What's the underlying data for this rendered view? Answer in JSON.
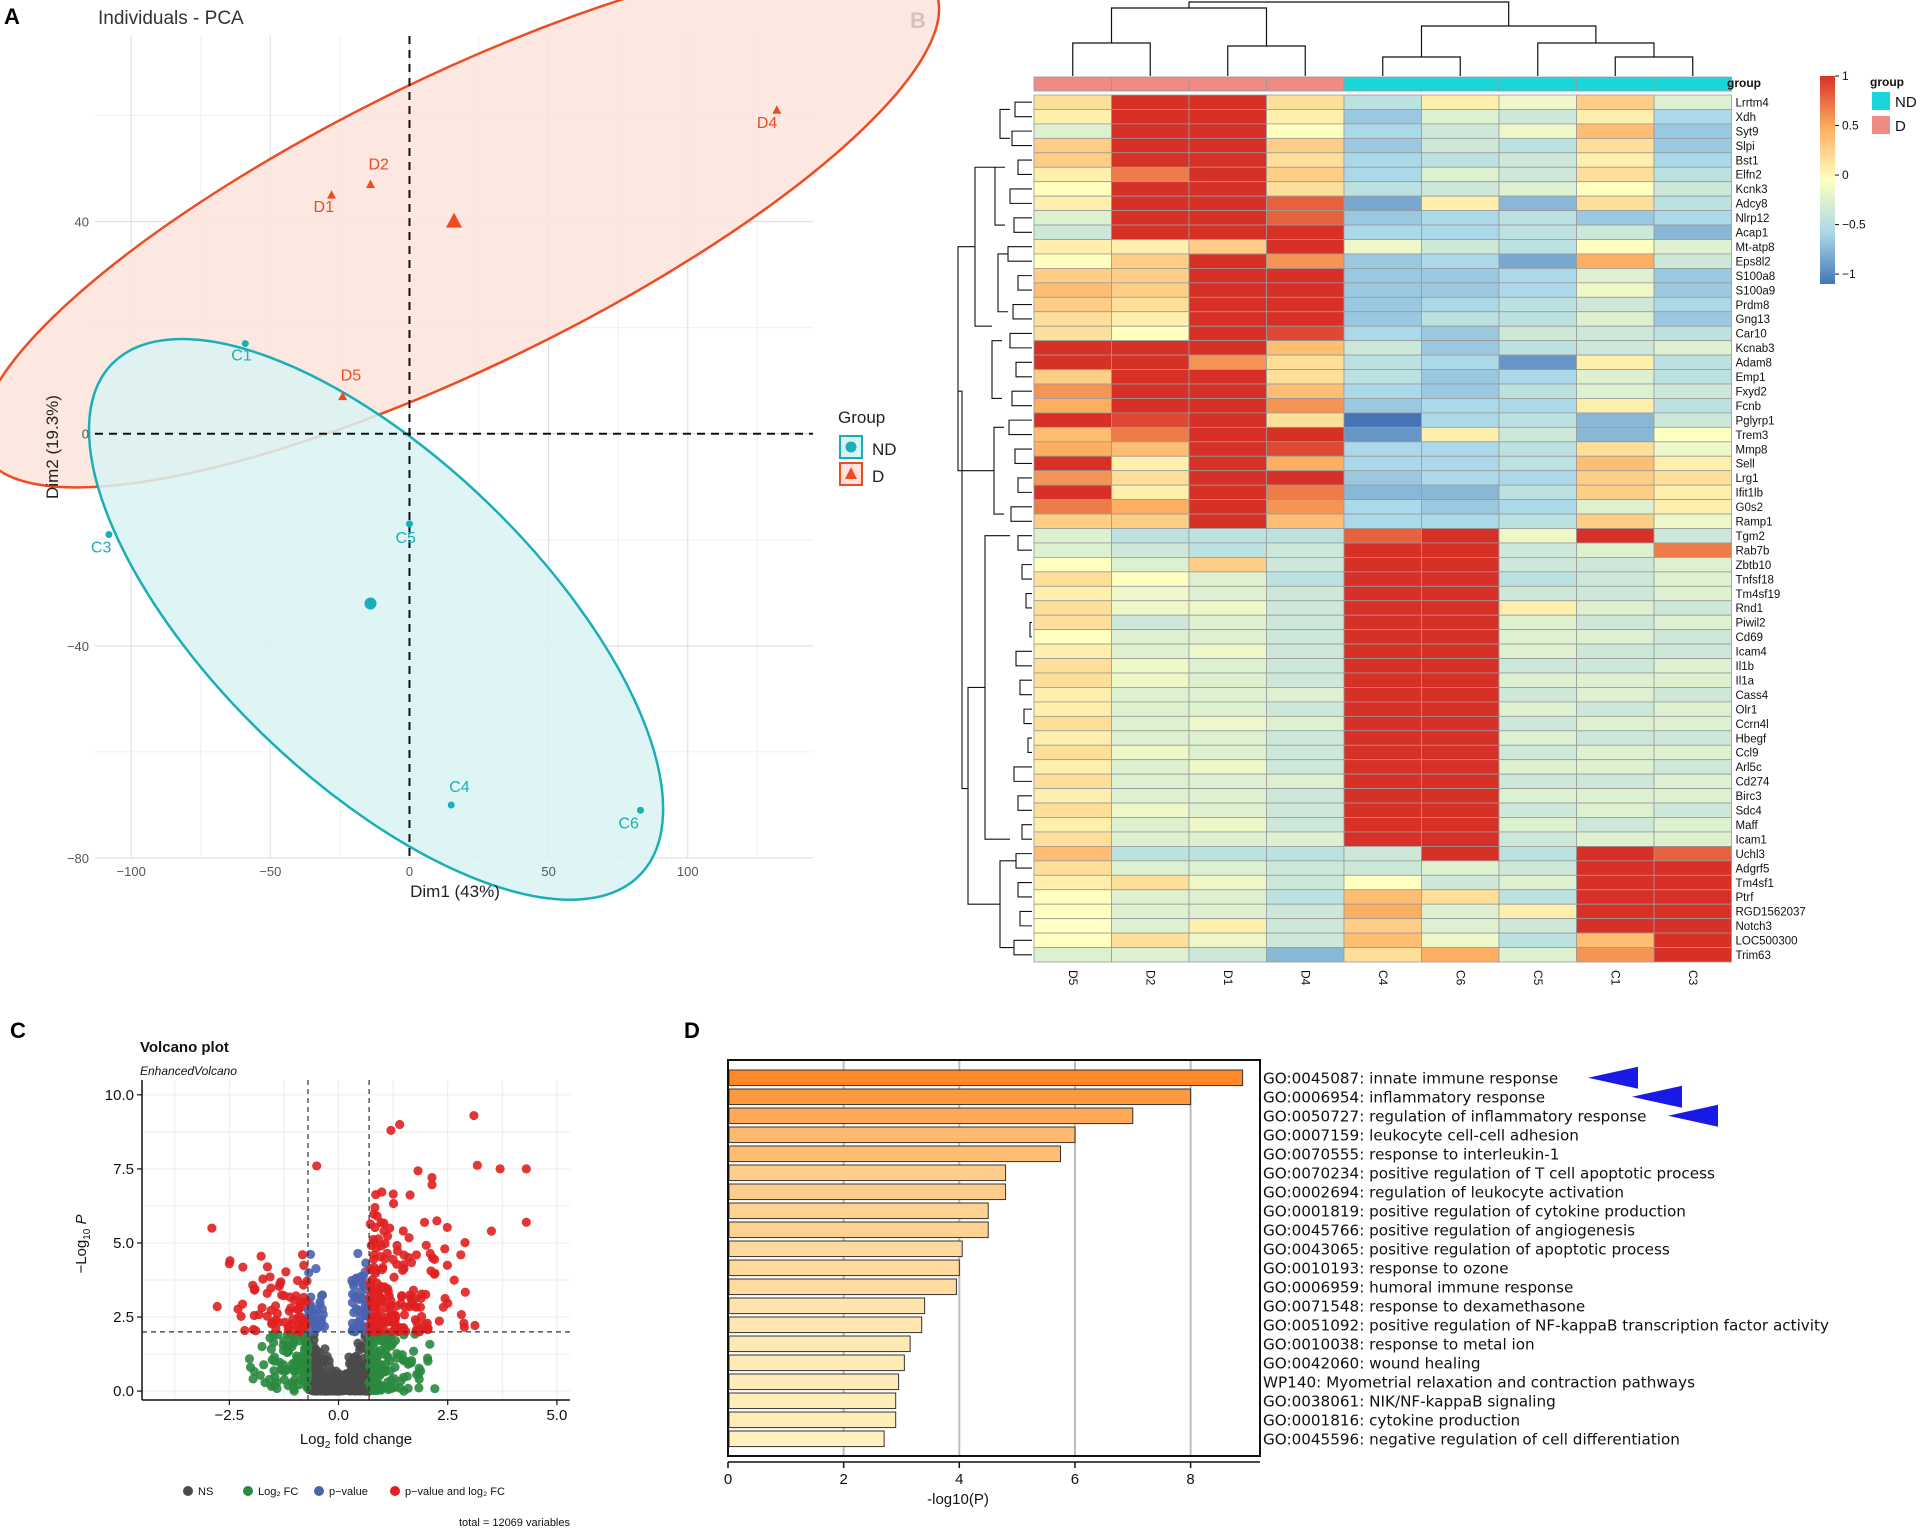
{
  "panels": {
    "a": "A",
    "b": "B",
    "c": "C",
    "d": "D"
  },
  "pca": {
    "title": "Individuals - PCA",
    "xlabel": "Dim1 (43%)",
    "ylabel": "Dim2 (19.3%)",
    "legend_title": "Group",
    "groups": [
      {
        "name": "ND",
        "color": "#1AAEB6"
      },
      {
        "name": "D",
        "color": "#EE4B22"
      }
    ]
  },
  "heat": {
    "group_header": "group",
    "legend_title": "group",
    "legend_groups": [
      {
        "name": "ND",
        "color": "#19D6D9"
      },
      {
        "name": "D",
        "color": "#F08A84"
      }
    ],
    "colorbar_ticks": [
      "1",
      "0.5",
      "0",
      "−0.5",
      "−1"
    ]
  },
  "volcano": {
    "title": "Volcano plot",
    "subtitle": "EnhancedVolcano",
    "xlabel_pre": "Log",
    "xlabel_sub": "2",
    "xlabel_post": " fold change",
    "ylabel_pre": "−Log",
    "ylabel_sub": "10",
    "ylabel_var": " P",
    "legend": [
      {
        "label": "NS",
        "color": "#4a4a4a"
      },
      {
        "label": "Log₂ FC",
        "color": "#2a8a3e"
      },
      {
        "label": "p−value",
        "color": "#4a63b0"
      },
      {
        "label": "p−value and log₂ FC",
        "color": "#e02020"
      }
    ],
    "total": "total = 12069 variables"
  },
  "go": {
    "xlabel": "-log10(P)"
  },
  "chart_data": [
    {
      "type": "scatter",
      "title": "Individuals - PCA",
      "xlabel": "Dim1 (43%)",
      "ylabel": "Dim2 (19.3%)",
      "xlim": [
        -113,
        145
      ],
      "ylim": [
        -80,
        75
      ],
      "xticks": [
        -100,
        -50,
        0,
        50,
        100
      ],
      "yticks": [
        -80,
        -40,
        0,
        40
      ],
      "points": [
        {
          "label": "D1",
          "x": -28,
          "y": 45,
          "group": "D"
        },
        {
          "label": "D2",
          "x": -14,
          "y": 47,
          "group": "D"
        },
        {
          "label": "D4",
          "x": 132,
          "y": 61,
          "group": "D"
        },
        {
          "label": "D5",
          "x": -24,
          "y": 7,
          "group": "D"
        },
        {
          "label": "C1",
          "x": -59,
          "y": 17,
          "group": "ND"
        },
        {
          "label": "C3",
          "x": -108,
          "y": -19,
          "group": "ND"
        },
        {
          "label": "C5",
          "x": 0,
          "y": -17,
          "group": "ND"
        },
        {
          "label": "C4",
          "x": 15,
          "y": -70,
          "group": "ND"
        },
        {
          "label": "C6",
          "x": 83,
          "y": -71,
          "group": "ND"
        }
      ],
      "centroids": [
        {
          "group": "D",
          "x": 16,
          "y": 40
        },
        {
          "group": "ND",
          "x": -14,
          "y": -32
        }
      ],
      "ellipses": [
        {
          "group": "D",
          "cx": 18,
          "cy": 40,
          "rx": 190,
          "ry": 52,
          "angle_deg": 26
        },
        {
          "group": "ND",
          "cx": -12,
          "cy": -35,
          "rx": 132,
          "ry": 58,
          "angle_deg": -44
        }
      ]
    },
    {
      "type": "heatmap",
      "columns": [
        "D5",
        "D2",
        "D1",
        "D4",
        "C4",
        "C6",
        "C5",
        "C1",
        "C3"
      ],
      "column_groups": [
        "D",
        "D",
        "D",
        "D",
        "ND",
        "ND",
        "ND",
        "ND",
        "ND"
      ],
      "rows": [
        "Lrrtm4",
        "Xdh",
        "Syt9",
        "Slpi",
        "Bst1",
        "Elfn2",
        "Kcnk3",
        "Adcy8",
        "Nlrp12",
        "Acap1",
        "Mt-atp8",
        "Eps8l2",
        "S100a8",
        "S100a9",
        "Prdm8",
        "Gng13",
        "Car10",
        "Kcnab3",
        "Adam8",
        "Emp1",
        "Fxyd2",
        "Fcnb",
        "Pglyrp1",
        "Trem3",
        "Mmp8",
        "Sell",
        "Lrg1",
        "Ifit1lb",
        "G0s2",
        "Ramp1",
        "Tgm2",
        "Rab7b",
        "Zbtb10",
        "Tnfsf18",
        "Tm4sf19",
        "Rnd1",
        "Piwil2",
        "Cd69",
        "Icam4",
        "Il1b",
        "Il1a",
        "Cass4",
        "Olr1",
        "Ccrn4l",
        "Hbegf",
        "Ccl9",
        "Arl5c",
        "Cd274",
        "Birc3",
        "Sdc4",
        "Maff",
        "Icam1",
        "Uchl3",
        "Adgrf5",
        "Tm4sf1",
        "Ptrf",
        "RGD1562037",
        "Notch3",
        "LOC500300",
        "Trim63"
      ],
      "values": [
        [
          0.2,
          1,
          1,
          0.2,
          -0.4,
          0.1,
          -0.1,
          0.3,
          -0.2
        ],
        [
          0.1,
          1,
          1,
          0.1,
          -0.6,
          -0.2,
          -0.3,
          0.1,
          -0.5
        ],
        [
          -0.2,
          1,
          1,
          0,
          -0.5,
          -0.3,
          -0.1,
          0.4,
          -0.6
        ],
        [
          0.3,
          1,
          1,
          0.3,
          -0.6,
          -0.3,
          -0.4,
          0.2,
          -0.6
        ],
        [
          0.3,
          1,
          1,
          0.2,
          -0.5,
          -0.4,
          -0.3,
          0.1,
          -0.5
        ],
        [
          0.1,
          0.7,
          1,
          0.3,
          -0.5,
          -0.2,
          -0.3,
          0.2,
          -0.4
        ],
        [
          0,
          1,
          1,
          0.2,
          -0.4,
          -0.3,
          -0.2,
          0,
          -0.3
        ],
        [
          0.1,
          1,
          1,
          0.8,
          -0.8,
          0.1,
          -0.7,
          0.2,
          -0.4
        ],
        [
          -0.2,
          1,
          1,
          0.8,
          -0.6,
          -0.5,
          -0.4,
          -0.6,
          -0.5
        ],
        [
          -0.3,
          1,
          1,
          1,
          -0.5,
          -0.5,
          -0.4,
          -0.3,
          -0.7
        ],
        [
          0.1,
          0.1,
          0.3,
          1,
          -0.1,
          -0.3,
          -0.4,
          0,
          -0.2
        ],
        [
          0,
          0.3,
          1,
          0.6,
          -0.6,
          -0.5,
          -0.8,
          0.5,
          -0.3
        ],
        [
          0.3,
          0.3,
          1,
          1,
          -0.6,
          -0.6,
          -0.5,
          -0.2,
          -0.6
        ],
        [
          0.4,
          0.3,
          1,
          1,
          -0.6,
          -0.6,
          -0.5,
          -0.1,
          -0.6
        ],
        [
          0.3,
          0.2,
          1,
          1,
          -0.6,
          -0.5,
          -0.4,
          -0.3,
          -0.5
        ],
        [
          0.2,
          0.1,
          1,
          1,
          -0.6,
          -0.4,
          -0.4,
          -0.2,
          -0.6
        ],
        [
          0.2,
          0,
          1,
          0.9,
          -0.5,
          -0.6,
          -0.3,
          -0.3,
          -0.4
        ],
        [
          1,
          1,
          1,
          0.4,
          -0.3,
          -0.6,
          -0.4,
          -0.3,
          -0.2
        ],
        [
          1,
          1,
          0.6,
          0.2,
          -0.4,
          -0.5,
          -0.9,
          0.1,
          -0.4
        ],
        [
          0.3,
          1,
          1,
          0.2,
          -0.4,
          -0.6,
          -0.5,
          -0.2,
          -0.4
        ],
        [
          0.6,
          1,
          1,
          0.4,
          -0.5,
          -0.6,
          -0.4,
          -0.2,
          -0.3
        ],
        [
          0.5,
          1,
          1,
          0.6,
          -0.6,
          -0.5,
          -0.5,
          0.1,
          -0.4
        ],
        [
          1,
          0.9,
          1,
          0.2,
          -1.1,
          -0.5,
          -0.4,
          -0.7,
          -0.3
        ],
        [
          0.4,
          0.7,
          1,
          1,
          -0.9,
          0.1,
          -0.3,
          -0.7,
          0
        ],
        [
          0.5,
          0.4,
          1,
          0.9,
          -0.5,
          -0.5,
          -0.4,
          0.2,
          -0.1
        ],
        [
          1,
          0.1,
          1,
          0.5,
          -0.5,
          -0.5,
          -0.4,
          0.4,
          0.1
        ],
        [
          0.6,
          0.2,
          1,
          1,
          -0.6,
          -0.5,
          -0.5,
          0.3,
          0.2
        ],
        [
          1,
          0.1,
          1,
          0.7,
          -0.7,
          -0.7,
          -0.4,
          0.3,
          0.1
        ],
        [
          0.7,
          0.5,
          1,
          0.6,
          -0.5,
          -0.6,
          -0.5,
          -0.2,
          0.1
        ],
        [
          0.3,
          0.3,
          1,
          0.4,
          -0.5,
          -0.5,
          -0.4,
          0.3,
          -0.1
        ],
        [
          -0.2,
          -0.4,
          -0.4,
          -0.4,
          0.8,
          1,
          -0.1,
          1,
          -0.3
        ],
        [
          -0.2,
          -0.3,
          -0.4,
          -0.3,
          1,
          1,
          -0.3,
          -0.2,
          0.7
        ],
        [
          0,
          -0.2,
          0.3,
          -0.3,
          1,
          1,
          -0.3,
          -0.3,
          -0.2
        ],
        [
          0.2,
          0,
          -0.2,
          -0.4,
          1,
          1,
          -0.4,
          -0.3,
          -0.2
        ],
        [
          0.1,
          -0.1,
          -0.2,
          -0.3,
          1,
          1,
          -0.3,
          -0.3,
          -0.2
        ],
        [
          0.2,
          -0.1,
          -0.1,
          -0.3,
          1,
          1,
          0.1,
          -0.2,
          -0.3
        ],
        [
          0.2,
          -0.3,
          -0.2,
          -0.3,
          1,
          1,
          -0.2,
          -0.3,
          -0.2
        ],
        [
          0,
          -0.2,
          -0.2,
          -0.3,
          1,
          1,
          -0.2,
          -0.2,
          -0.3
        ],
        [
          0.1,
          -0.2,
          -0.1,
          -0.3,
          1,
          1,
          -0.2,
          -0.3,
          -0.3
        ],
        [
          0.2,
          -0.1,
          -0.2,
          -0.3,
          1,
          1,
          -0.3,
          -0.3,
          -0.2
        ],
        [
          0.2,
          -0.1,
          -0.2,
          -0.3,
          1,
          1,
          -0.2,
          -0.2,
          -0.2
        ],
        [
          0.1,
          -0.2,
          -0.2,
          -0.2,
          1,
          1,
          -0.3,
          -0.2,
          -0.3
        ],
        [
          0.1,
          -0.2,
          -0.2,
          -0.3,
          1,
          1,
          -0.2,
          -0.3,
          -0.2
        ],
        [
          0.2,
          -0.2,
          -0.1,
          -0.2,
          1,
          1,
          -0.3,
          -0.2,
          -0.2
        ],
        [
          0.1,
          -0.2,
          -0.2,
          -0.3,
          1,
          1,
          -0.2,
          -0.3,
          -0.3
        ],
        [
          0.2,
          -0.1,
          -0.2,
          -0.3,
          1,
          1,
          -0.3,
          -0.2,
          -0.2
        ],
        [
          0.1,
          -0.2,
          -0.1,
          -0.3,
          1,
          1,
          -0.2,
          -0.2,
          -0.3
        ],
        [
          0.2,
          -0.2,
          -0.2,
          -0.2,
          1,
          1,
          -0.3,
          -0.3,
          -0.2
        ],
        [
          0.1,
          -0.2,
          -0.2,
          -0.3,
          1,
          1,
          -0.2,
          -0.2,
          -0.2
        ],
        [
          0.2,
          -0.1,
          -0.2,
          -0.3,
          1,
          1,
          -0.3,
          -0.2,
          -0.3
        ],
        [
          0.1,
          -0.2,
          -0.1,
          -0.3,
          1,
          1,
          -0.2,
          -0.3,
          -0.2
        ],
        [
          0.2,
          -0.2,
          -0.2,
          -0.2,
          1,
          1,
          -0.3,
          -0.2,
          -0.2
        ],
        [
          0.4,
          -0.4,
          -0.4,
          -0.4,
          -0.3,
          1,
          -0.4,
          1,
          0.8
        ],
        [
          0.2,
          -0.2,
          -0.2,
          -0.3,
          -0.3,
          -0.2,
          -0.3,
          1,
          1
        ],
        [
          0.1,
          0.2,
          -0.1,
          -0.3,
          0,
          -0.3,
          -0.2,
          1,
          1
        ],
        [
          0,
          -0.2,
          -0.2,
          -0.4,
          0.4,
          0.2,
          -0.4,
          1,
          1
        ],
        [
          0,
          -0.2,
          -0.2,
          -0.3,
          0.5,
          -0.2,
          0.1,
          1,
          1
        ],
        [
          0,
          -0.2,
          0.1,
          -0.3,
          0.3,
          -0.2,
          -0.3,
          1,
          1
        ],
        [
          0,
          0.2,
          -0.1,
          -0.3,
          0.4,
          -0.1,
          -0.4,
          0.4,
          1
        ],
        [
          -0.2,
          -0.2,
          -0.3,
          -0.7,
          0.2,
          0.5,
          -0.2,
          0.6,
          1
        ]
      ]
    },
    {
      "type": "scatter",
      "title": "Volcano plot",
      "xlabel": "Log2 fold change",
      "ylabel": "-Log10 P",
      "xlim": [
        -4.5,
        5.3
      ],
      "ylim": [
        -0.3,
        10.5
      ],
      "xticks": [
        -2.5,
        0.0,
        2.5,
        5.0
      ],
      "yticks": [
        0.0,
        2.5,
        5.0,
        7.5,
        10.0
      ],
      "thresholds": {
        "log2fc": [
          -0.7,
          0.7
        ],
        "neg_log10_p": 2.0
      },
      "categories": [
        "NS",
        "Log2 FC",
        "p-value",
        "p-value and log2 FC"
      ],
      "highlighted_points": [
        {
          "x": 3.1,
          "y": 9.3
        },
        {
          "x": 1.4,
          "y": 9.0
        },
        {
          "x": 1.2,
          "y": 8.8
        },
        {
          "x": -0.5,
          "y": 7.6
        },
        {
          "x": 3.7,
          "y": 7.5
        },
        {
          "x": 4.3,
          "y": 7.5
        },
        {
          "x": 4.3,
          "y": 5.7
        },
        {
          "x": -2.9,
          "y": 5.5
        },
        {
          "x": 3.5,
          "y": 5.4
        },
        {
          "x": 2.8,
          "y": 4.6
        },
        {
          "x": -2.5,
          "y": 4.3
        }
      ]
    },
    {
      "type": "bar",
      "orientation": "horizontal",
      "xlabel": "-log10(P)",
      "xlim": [
        0,
        9.2
      ],
      "xticks": [
        0,
        2,
        4,
        6,
        8
      ],
      "categories": [
        "GO:0045087: innate immune response",
        "GO:0006954: inflammatory response",
        "GO:0050727: regulation of inflammatory response",
        "GO:0007159: leukocyte cell-cell adhesion",
        "GO:0070555: response to interleukin-1",
        "GO:0070234: positive regulation of T cell apoptotic process",
        "GO:0002694: regulation of leukocyte activation",
        "GO:0001819: positive regulation of cytokine production",
        "GO:0045766: positive regulation of angiogenesis",
        "GO:0043065: positive regulation of apoptotic process",
        "GO:0010193: response to ozone",
        "GO:0006959: humoral immune response",
        "GO:0071548: response to dexamethasone",
        "GO:0051092: positive regulation of NF-kappaB transcription factor activity",
        "GO:0010038: response to metal ion",
        "GO:0042060: wound healing",
        "WP140: Myometrial relaxation and contraction pathways",
        "GO:0038061: NIK/NF-kappaB signaling",
        "GO:0001816: cytokine production",
        "GO:0045596: negative regulation of cell differentiation"
      ],
      "values": [
        8.9,
        8.0,
        7.0,
        6.0,
        5.75,
        4.8,
        4.8,
        4.5,
        4.5,
        4.05,
        4.0,
        3.95,
        3.4,
        3.35,
        3.15,
        3.05,
        2.95,
        2.9,
        2.9,
        2.7
      ],
      "highlighted": [
        0,
        1,
        2
      ]
    }
  ]
}
